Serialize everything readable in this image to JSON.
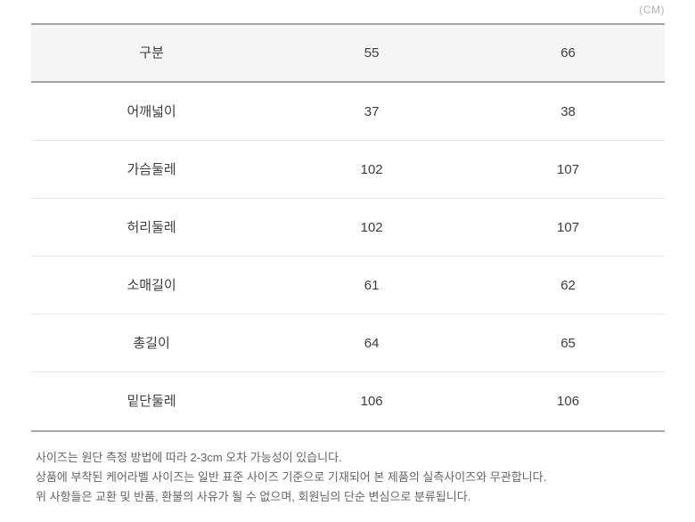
{
  "unit_label": "(CM)",
  "size_table": {
    "columns": [
      "구분",
      "55",
      "66"
    ],
    "rows": [
      {
        "label": "어깨넓이",
        "values": [
          "37",
          "38"
        ]
      },
      {
        "label": "가슴둘레",
        "values": [
          "102",
          "107"
        ]
      },
      {
        "label": "허리둘레",
        "values": [
          "102",
          "107"
        ]
      },
      {
        "label": "소매길이",
        "values": [
          "61",
          "62"
        ]
      },
      {
        "label": "총길이",
        "values": [
          "64",
          "65"
        ]
      },
      {
        "label": "밑단둘레",
        "values": [
          "106",
          "106"
        ]
      }
    ]
  },
  "notes": [
    "사이즈는 원단 측정 방법에 따라 2-3cm 오차 가능성이 있습니다.",
    "상품에 부착된 케어라벨 사이즈는 일반 표준 사이즈 기준으로 기재되어 본 제품의 실측사이즈와 무관합니다.",
    "위 사항들은 교환 및 반품, 환불의 사유가 될 수 없으며, 회원님의 단순 변심으로 분류됩니다."
  ],
  "colors": {
    "header_background": "#f5f5f5",
    "strong_border": "#a3a3a3",
    "light_border": "#e7e7e7",
    "cell_text": "#3d3d3d",
    "note_text": "#666666",
    "unit_text": "#b3b3b3"
  }
}
